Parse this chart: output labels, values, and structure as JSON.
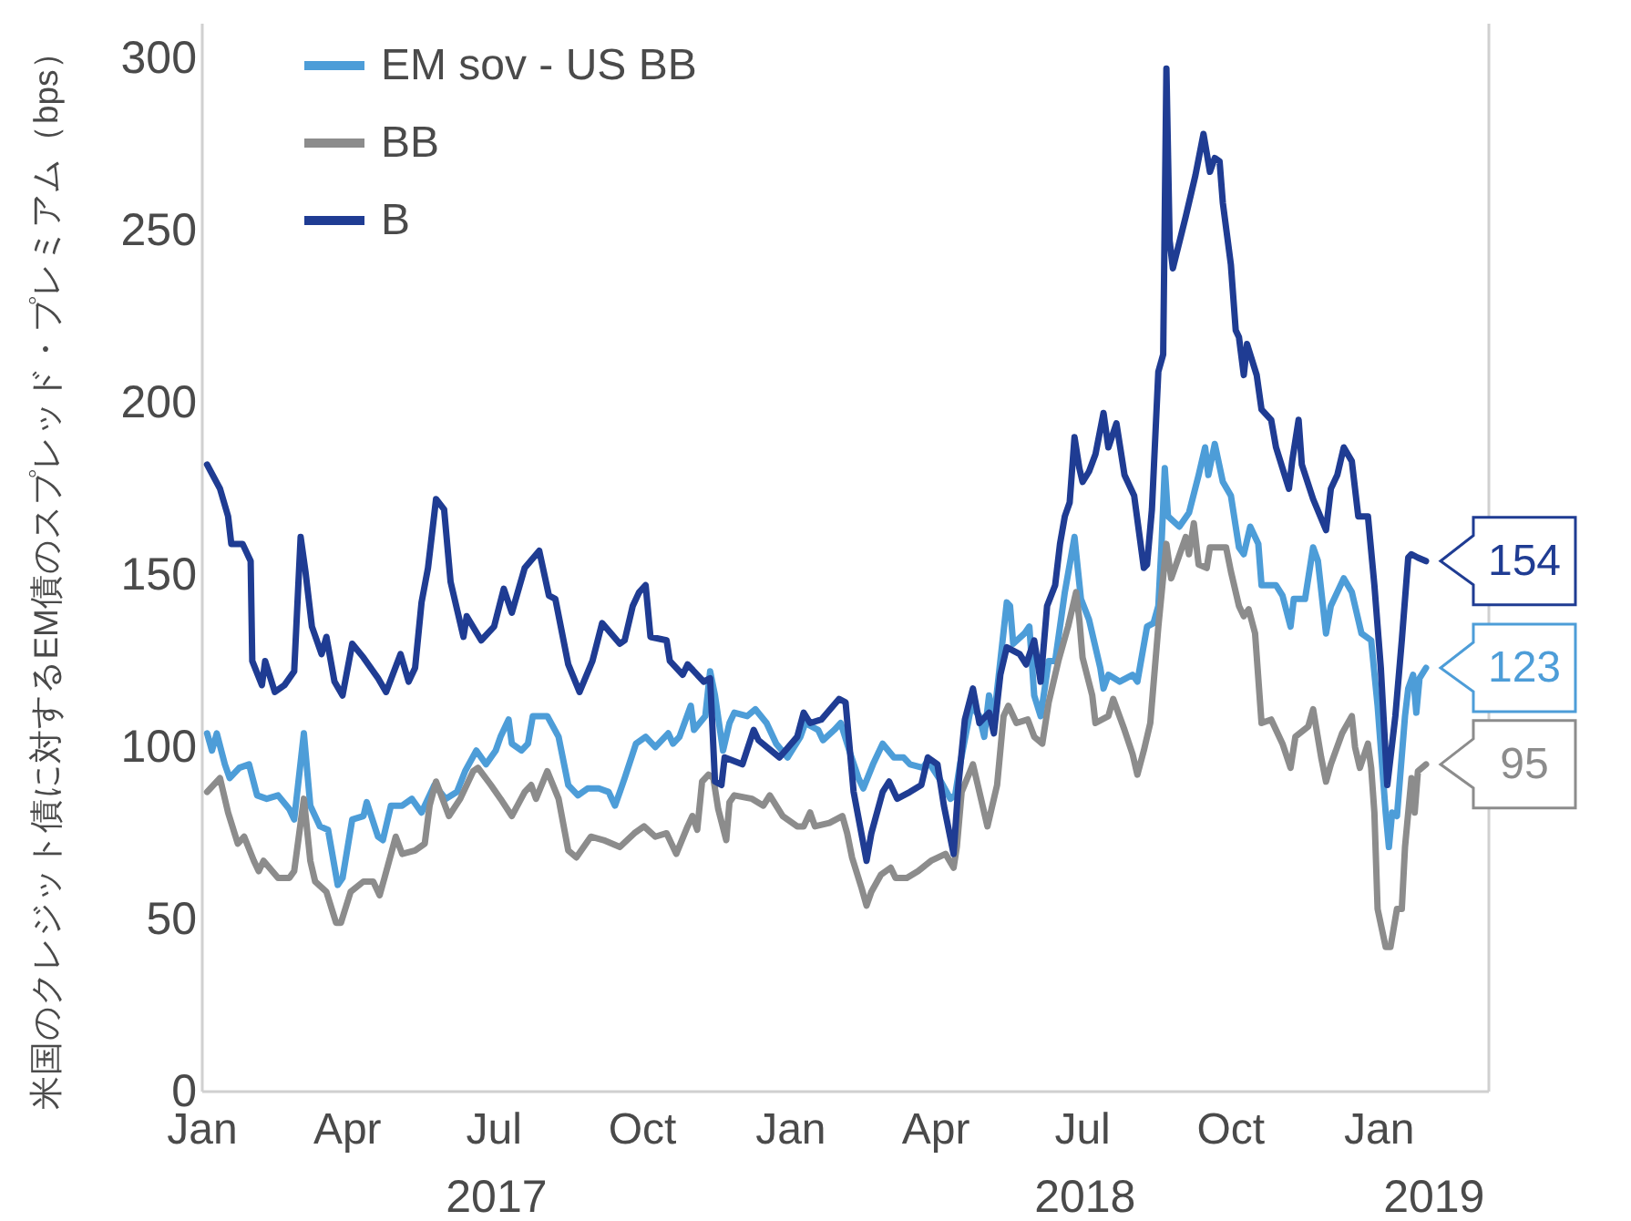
{
  "chart_data": {
    "type": "line",
    "ylabel": "米国のクレジット債に対するEM債のスプレッド・プレミアム（bps）",
    "xlim": [
      "2017-01-01",
      "2019-03-10"
    ],
    "ylim": [
      0,
      310
    ],
    "xticks": [
      {
        "value": "2017-01-01",
        "label": "Jan"
      },
      {
        "value": "2017-04-01",
        "label": "Apr"
      },
      {
        "value": "2017-07-01",
        "label": "Jul"
      },
      {
        "value": "2017-10-01",
        "label": "Oct"
      },
      {
        "value": "2018-01-01",
        "label": "Jan"
      },
      {
        "value": "2018-04-01",
        "label": "Apr"
      },
      {
        "value": "2018-07-01",
        "label": "Jul"
      },
      {
        "value": "2018-10-01",
        "label": "Oct"
      },
      {
        "value": "2019-01-01",
        "label": "Jan"
      }
    ],
    "yticks": [
      0,
      50,
      100,
      150,
      200,
      250,
      300
    ],
    "grid": false,
    "legend": "top left",
    "annotations": [
      "2017",
      "2018",
      "2019"
    ],
    "series": [
      {
        "name": "EM sov - US BB",
        "color": "#4d9dd8",
        "x": [
          "2017-01-04",
          "2017-01-07",
          "2017-01-10",
          "2017-01-15",
          "2017-01-18",
          "2017-01-24",
          "2017-01-30",
          "2017-02-04",
          "2017-02-10",
          "2017-02-17",
          "2017-02-24",
          "2017-02-27",
          "2017-03-05",
          "2017-03-09",
          "2017-03-15",
          "2017-03-20",
          "2017-03-26",
          "2017-03-29",
          "2017-04-04",
          "2017-04-11",
          "2017-04-13",
          "2017-04-20",
          "2017-04-23",
          "2017-04-28",
          "2017-05-05",
          "2017-05-11",
          "2017-05-17",
          "2017-05-25",
          "2017-06-01",
          "2017-06-08",
          "2017-06-13",
          "2017-06-20",
          "2017-06-26",
          "2017-07-02",
          "2017-07-05",
          "2017-07-10",
          "2017-07-12",
          "2017-07-18",
          "2017-07-22",
          "2017-07-25",
          "2017-08-03",
          "2017-08-10",
          "2017-08-16",
          "2017-08-22",
          "2017-08-28",
          "2017-09-04",
          "2017-09-10",
          "2017-09-14",
          "2017-09-17",
          "2017-09-20",
          "2017-09-27",
          "2017-10-03",
          "2017-10-09",
          "2017-10-17",
          "2017-10-20",
          "2017-10-24",
          "2017-10-31",
          "2017-11-02",
          "2017-11-09",
          "2017-11-12",
          "2017-11-15",
          "2017-11-20",
          "2017-11-24",
          "2017-11-27",
          "2017-12-05",
          "2017-12-10",
          "2017-12-17",
          "2017-12-23",
          "2017-12-30",
          "2018-01-07",
          "2018-01-10",
          "2018-01-18",
          "2018-01-21",
          "2018-01-28",
          "2018-02-01",
          "2018-02-07",
          "2018-02-12",
          "2018-02-15",
          "2018-02-21",
          "2018-02-27",
          "2018-03-06",
          "2018-03-12",
          "2018-03-16",
          "2018-03-24",
          "2018-03-27",
          "2018-04-03",
          "2018-04-10",
          "2018-04-13",
          "2018-04-16",
          "2018-04-23",
          "2018-04-28",
          "2018-05-01",
          "2018-05-04",
          "2018-05-07",
          "2018-05-15",
          "2018-05-17",
          "2018-05-19",
          "2018-05-26",
          "2018-05-29",
          "2018-06-01",
          "2018-06-05",
          "2018-06-10",
          "2018-06-14",
          "2018-06-20",
          "2018-06-26",
          "2018-06-30",
          "2018-07-05",
          "2018-07-12",
          "2018-07-14",
          "2018-07-17",
          "2018-07-24",
          "2018-08-01",
          "2018-08-04",
          "2018-08-10",
          "2018-08-14",
          "2018-08-17",
          "2018-08-19",
          "2018-08-21",
          "2018-08-23",
          "2018-08-30",
          "2018-09-05",
          "2018-09-11",
          "2018-09-15",
          "2018-09-17",
          "2018-09-21",
          "2018-09-26",
          "2018-10-01",
          "2018-10-06",
          "2018-10-09",
          "2018-10-13",
          "2018-10-18",
          "2018-10-20",
          "2018-10-29",
          "2018-11-02",
          "2018-11-07",
          "2018-11-09",
          "2018-11-16",
          "2018-11-21",
          "2018-11-24",
          "2018-11-29",
          "2018-12-02",
          "2018-12-10",
          "2018-12-15",
          "2018-12-21",
          "2018-12-27",
          "2018-12-31",
          "2019-01-05",
          "2019-01-07",
          "2019-01-09",
          "2019-01-12",
          "2019-01-17",
          "2019-01-19",
          "2019-01-22",
          "2019-01-24",
          "2019-01-26",
          "2019-01-30"
        ],
        "values": [
          104,
          99,
          104,
          95,
          91,
          94,
          95,
          86,
          85,
          86,
          82,
          79,
          104,
          83,
          77,
          76,
          60,
          62,
          79,
          80,
          84,
          74,
          73,
          83,
          83,
          85,
          81,
          89,
          85,
          87,
          93,
          99,
          95,
          99,
          103,
          108,
          101,
          99,
          101,
          109,
          109,
          103,
          89,
          86,
          88,
          88,
          87,
          83,
          87,
          91,
          101,
          103,
          100,
          104,
          101,
          103,
          112,
          105,
          109,
          122,
          115,
          99,
          107,
          110,
          109,
          111,
          107,
          101,
          97,
          103,
          107,
          105,
          102,
          105,
          107,
          98,
          91,
          88,
          95,
          101,
          97,
          97,
          95,
          94,
          96,
          91,
          85,
          86,
          95,
          112,
          109,
          103,
          115,
          108,
          142,
          141,
          130,
          133,
          135,
          115,
          109,
          125,
          125,
          145,
          161,
          143,
          137,
          123,
          117,
          121,
          119,
          121,
          119,
          135,
          136,
          141,
          159,
          181,
          167,
          164,
          168,
          179,
          187,
          179,
          188,
          177,
          173,
          158,
          156,
          164,
          159,
          147,
          147,
          144,
          135,
          143,
          143,
          158,
          154,
          133,
          141,
          149,
          145,
          133,
          131,
          112,
          81,
          71,
          81,
          80,
          109,
          117,
          121,
          110,
          120,
          123
        ],
        "value_labels": [
          null,
          null,
          null,
          null,
          null,
          null,
          null,
          null,
          null,
          null,
          null,
          null,
          null,
          null,
          null,
          null,
          null,
          null,
          null,
          null,
          null,
          null,
          null,
          null,
          null,
          null,
          null,
          null,
          null,
          null,
          null,
          null,
          null,
          null,
          null,
          null,
          null,
          null,
          null,
          null,
          null,
          null,
          null,
          null,
          null,
          null,
          null,
          null,
          null,
          null,
          null,
          null,
          null,
          null,
          null,
          null,
          null,
          null,
          null,
          null,
          null,
          null,
          null,
          null,
          null,
          null,
          null,
          null,
          null,
          null,
          null,
          null,
          null,
          null,
          null,
          null,
          null,
          null,
          null,
          null,
          null,
          null,
          null,
          null,
          null,
          null,
          null,
          null,
          null,
          null,
          null,
          null,
          null,
          null,
          null,
          null,
          null,
          null,
          null,
          null,
          null,
          null,
          null,
          null,
          null,
          null,
          null,
          null,
          null,
          null,
          null,
          null,
          null,
          null,
          null,
          null,
          null,
          null,
          null,
          null,
          null,
          null,
          null,
          null,
          null,
          null,
          null,
          null,
          null,
          null,
          null,
          null,
          null,
          null,
          null,
          null,
          null,
          null,
          null,
          null,
          null,
          null,
          null,
          null,
          null,
          null,
          null,
          null,
          null,
          null,
          null,
          null,
          null,
          null,
          null,
          "123"
        ]
      },
      {
        "name": "BB",
        "color": "#8c8c8c",
        "x": [
          "2017-01-04",
          "2017-01-12",
          "2017-01-17",
          "2017-01-23",
          "2017-01-27",
          "2017-02-02",
          "2017-02-05",
          "2017-02-08",
          "2017-02-17",
          "2017-02-24",
          "2017-02-27",
          "2017-03-05",
          "2017-03-09",
          "2017-03-12",
          "2017-03-19",
          "2017-03-25",
          "2017-03-28",
          "2017-04-03",
          "2017-04-11",
          "2017-04-17",
          "2017-04-21",
          "2017-04-24",
          "2017-05-01",
          "2017-05-05",
          "2017-05-13",
          "2017-05-19",
          "2017-05-22",
          "2017-05-26",
          "2017-06-03",
          "2017-06-10",
          "2017-06-18",
          "2017-06-21",
          "2017-06-29",
          "2017-07-05",
          "2017-07-12",
          "2017-07-20",
          "2017-07-24",
          "2017-07-27",
          "2017-08-03",
          "2017-08-10",
          "2017-08-16",
          "2017-08-21",
          "2017-08-30",
          "2017-09-07",
          "2017-09-17",
          "2017-09-26",
          "2017-10-02",
          "2017-10-09",
          "2017-10-16",
          "2017-10-22",
          "2017-10-29",
          "2017-11-01",
          "2017-11-04",
          "2017-11-07",
          "2017-11-11",
          "2017-11-14",
          "2017-11-17",
          "2017-11-22",
          "2017-11-24",
          "2017-11-27",
          "2017-12-08",
          "2017-12-15",
          "2017-12-19",
          "2017-12-27",
          "2018-01-05",
          "2018-01-09",
          "2018-01-13",
          "2018-01-16",
          "2018-01-25",
          "2018-02-02",
          "2018-02-05",
          "2018-02-08",
          "2018-02-14",
          "2018-02-17",
          "2018-02-20",
          "2018-02-26",
          "2018-03-04",
          "2018-03-07",
          "2018-03-14",
          "2018-03-21",
          "2018-03-29",
          "2018-04-07",
          "2018-04-12",
          "2018-04-14",
          "2018-04-17",
          "2018-04-24",
          "2018-04-27",
          "2018-05-03",
          "2018-05-09",
          "2018-05-13",
          "2018-05-16",
          "2018-05-21",
          "2018-05-28",
          "2018-06-01",
          "2018-06-06",
          "2018-06-10",
          "2018-06-16",
          "2018-06-22",
          "2018-06-27",
          "2018-06-29",
          "2018-07-01",
          "2018-07-07",
          "2018-07-09",
          "2018-07-17",
          "2018-07-20",
          "2018-07-27",
          "2018-08-01",
          "2018-08-04",
          "2018-08-08",
          "2018-08-12",
          "2018-08-17",
          "2018-08-22",
          "2018-08-25",
          "2018-09-03",
          "2018-09-05",
          "2018-09-08",
          "2018-09-11",
          "2018-09-16",
          "2018-09-18",
          "2018-09-28",
          "2018-10-01",
          "2018-10-06",
          "2018-10-09",
          "2018-10-12",
          "2018-10-16",
          "2018-10-20",
          "2018-10-26",
          "2018-11-02",
          "2018-11-07",
          "2018-11-10",
          "2018-11-18",
          "2018-11-21",
          "2018-11-26",
          "2018-11-29",
          "2018-12-02",
          "2018-12-09",
          "2018-12-15",
          "2018-12-17",
          "2018-12-20",
          "2018-12-25",
          "2018-12-27",
          "2018-12-29",
          "2018-12-31",
          "2019-01-05",
          "2019-01-08",
          "2019-01-12",
          "2019-01-15",
          "2019-01-17",
          "2019-01-21",
          "2019-01-23",
          "2019-01-25",
          "2019-01-30"
        ],
        "values": [
          87,
          91,
          81,
          72,
          74,
          67,
          64,
          67,
          62,
          62,
          64,
          85,
          67,
          61,
          58,
          49,
          49,
          58,
          61,
          61,
          57,
          62,
          74,
          69,
          70,
          72,
          83,
          90,
          80,
          85,
          93,
          94,
          89,
          85,
          80,
          87,
          89,
          85,
          93,
          85,
          70,
          68,
          74,
          73,
          71,
          75,
          77,
          74,
          75,
          69,
          77,
          80,
          76,
          90,
          92,
          91,
          82,
          73,
          84,
          86,
          85,
          83,
          86,
          80,
          77,
          77,
          81,
          77,
          78,
          80,
          75,
          68,
          59,
          54,
          58,
          63,
          65,
          62,
          62,
          64,
          67,
          69,
          65,
          71,
          87,
          95,
          89,
          77,
          89,
          109,
          112,
          107,
          108,
          103,
          101,
          113,
          125,
          135,
          145,
          137,
          126,
          115,
          107,
          109,
          114,
          105,
          98,
          92,
          99,
          107,
          135,
          159,
          149,
          161,
          156,
          165,
          153,
          152,
          158,
          158,
          151,
          141,
          138,
          140,
          133,
          107,
          108,
          101,
          94,
          103,
          106,
          111,
          97,
          90,
          95,
          104,
          109,
          100,
          94,
          101,
          94,
          81,
          53,
          42,
          42,
          53,
          53,
          71,
          91,
          81,
          93,
          95
        ],
        "value_labels": [
          null,
          null,
          null,
          null,
          null,
          null,
          null,
          null,
          null,
          null,
          null,
          null,
          null,
          null,
          null,
          null,
          null,
          null,
          null,
          null,
          null,
          null,
          null,
          null,
          null,
          null,
          null,
          null,
          null,
          null,
          null,
          null,
          null,
          null,
          null,
          null,
          null,
          null,
          null,
          null,
          null,
          null,
          null,
          null,
          null,
          null,
          null,
          null,
          null,
          null,
          null,
          null,
          null,
          null,
          null,
          null,
          null,
          null,
          null,
          null,
          null,
          null,
          null,
          null,
          null,
          null,
          null,
          null,
          null,
          null,
          null,
          null,
          null,
          null,
          null,
          null,
          null,
          null,
          null,
          null,
          null,
          null,
          null,
          null,
          null,
          null,
          null,
          null,
          null,
          null,
          null,
          null,
          null,
          null,
          null,
          null,
          null,
          null,
          null,
          null,
          null,
          null,
          null,
          null,
          null,
          null,
          null,
          null,
          null,
          null,
          null,
          null,
          null,
          null,
          null,
          null,
          null,
          null,
          null,
          null,
          null,
          null,
          null,
          null,
          null,
          null,
          null,
          null,
          null,
          null,
          null,
          null,
          null,
          null,
          null,
          null,
          null,
          null,
          null,
          null,
          null,
          null,
          null,
          null,
          null,
          null,
          null,
          null,
          null,
          null,
          null,
          "95"
        ]
      },
      {
        "name": "B",
        "color": "#1f3c93",
        "x": [
          "2017-01-04",
          "2017-01-12",
          "2017-01-17",
          "2017-01-19",
          "2017-01-26",
          "2017-01-31",
          "2017-02-01",
          "2017-02-07",
          "2017-02-09",
          "2017-02-15",
          "2017-02-21",
          "2017-02-27",
          "2017-03-03",
          "2017-03-06",
          "2017-03-10",
          "2017-03-16",
          "2017-03-19",
          "2017-03-24",
          "2017-03-29",
          "2017-04-04",
          "2017-04-11",
          "2017-04-20",
          "2017-04-25",
          "2017-05-04",
          "2017-05-09",
          "2017-05-13",
          "2017-05-17",
          "2017-05-21",
          "2017-05-26",
          "2017-05-31",
          "2017-06-04",
          "2017-06-12",
          "2017-06-14",
          "2017-06-23",
          "2017-07-01",
          "2017-07-07",
          "2017-07-12",
          "2017-07-20",
          "2017-07-29",
          "2017-08-04",
          "2017-08-08",
          "2017-08-16",
          "2017-08-23",
          "2017-08-31",
          "2017-09-06",
          "2017-09-17",
          "2017-09-20",
          "2017-09-25",
          "2017-09-29",
          "2017-10-03",
          "2017-10-06",
          "2017-10-16",
          "2017-10-18",
          "2017-10-26",
          "2017-10-29",
          "2017-11-08",
          "2017-11-12",
          "2017-11-15",
          "2017-11-19",
          "2017-11-21",
          "2017-12-02",
          "2017-12-09",
          "2017-12-12",
          "2017-12-25",
          "2018-01-05",
          "2018-01-09",
          "2018-01-13",
          "2018-01-20",
          "2018-01-31",
          "2018-02-04",
          "2018-02-09",
          "2018-02-17",
          "2018-02-20",
          "2018-02-27",
          "2018-03-03",
          "2018-03-08",
          "2018-03-16",
          "2018-03-23",
          "2018-03-27",
          "2018-04-02",
          "2018-04-06",
          "2018-04-12",
          "2018-04-15",
          "2018-04-19",
          "2018-04-24",
          "2018-04-28",
          "2018-05-04",
          "2018-05-07",
          "2018-05-11",
          "2018-05-15",
          "2018-05-23",
          "2018-05-27",
          "2018-06-01",
          "2018-06-05",
          "2018-06-09",
          "2018-06-14",
          "2018-06-17",
          "2018-06-20",
          "2018-06-23",
          "2018-06-26",
          "2018-06-29",
          "2018-07-01",
          "2018-07-05",
          "2018-07-09",
          "2018-07-14",
          "2018-07-17",
          "2018-07-22",
          "2018-07-27",
          "2018-08-02",
          "2018-08-08",
          "2018-08-10",
          "2018-08-13",
          "2018-08-17",
          "2018-08-20",
          "2018-08-22",
          "2018-08-24",
          "2018-08-26",
          "2018-09-03",
          "2018-09-09",
          "2018-09-14",
          "2018-09-18",
          "2018-09-21",
          "2018-09-24",
          "2018-09-26",
          "2018-10-01",
          "2018-10-04",
          "2018-10-06",
          "2018-10-09",
          "2018-10-11",
          "2018-10-17",
          "2018-10-20",
          "2018-10-26",
          "2018-10-29",
          "2018-11-02",
          "2018-11-06",
          "2018-11-08",
          "2018-11-12",
          "2018-11-14",
          "2018-11-21",
          "2018-11-29",
          "2018-12-02",
          "2018-12-06",
          "2018-12-10",
          "2018-12-15",
          "2018-12-19",
          "2018-12-25",
          "2018-12-29",
          "2019-01-02",
          "2019-01-06",
          "2019-01-11",
          "2019-01-15",
          "2019-01-19",
          "2019-01-21",
          "2019-01-25",
          "2019-01-30"
        ],
        "values": [
          182,
          175,
          167,
          159,
          159,
          154,
          125,
          118,
          125,
          116,
          118,
          122,
          161,
          151,
          135,
          127,
          132,
          119,
          115,
          130,
          126,
          120,
          116,
          127,
          119,
          123,
          142,
          152,
          172,
          169,
          148,
          132,
          138,
          131,
          135,
          146,
          139,
          152,
          157,
          144,
          143,
          124,
          116,
          125,
          136,
          130,
          131,
          141,
          145,
          147,
          132,
          131,
          125,
          121,
          124,
          119,
          120,
          90,
          89,
          97,
          95,
          105,
          102,
          97,
          103,
          110,
          107,
          108,
          114,
          113,
          87,
          67,
          75,
          87,
          90,
          85,
          87,
          89,
          97,
          95,
          83,
          69,
          89,
          108,
          117,
          107,
          110,
          104,
          121,
          129,
          127,
          124,
          131,
          119,
          141,
          147,
          159,
          167,
          171,
          190,
          181,
          177,
          180,
          185,
          197,
          187,
          194,
          179,
          173,
          152,
          153,
          169,
          209,
          214,
          297,
          247,
          239,
          254,
          266,
          278,
          267,
          271,
          270,
          258,
          240,
          221,
          219,
          208,
          217,
          208,
          198,
          195,
          187,
          181,
          175,
          183,
          195,
          182,
          172,
          163,
          175,
          179,
          187,
          183,
          167,
          167,
          147,
          123,
          89,
          109,
          131,
          155,
          156,
          155,
          154
        ],
        "value_labels": [
          null,
          null,
          null,
          null,
          null,
          null,
          null,
          null,
          null,
          null,
          null,
          null,
          null,
          null,
          null,
          null,
          null,
          null,
          null,
          null,
          null,
          null,
          null,
          null,
          null,
          null,
          null,
          null,
          null,
          null,
          null,
          null,
          null,
          null,
          null,
          null,
          null,
          null,
          null,
          null,
          null,
          null,
          null,
          null,
          null,
          null,
          null,
          null,
          null,
          null,
          null,
          null,
          null,
          null,
          null,
          null,
          null,
          null,
          null,
          null,
          null,
          null,
          null,
          null,
          null,
          null,
          null,
          null,
          null,
          null,
          null,
          null,
          null,
          null,
          null,
          null,
          null,
          null,
          null,
          null,
          null,
          null,
          null,
          null,
          null,
          null,
          null,
          null,
          null,
          null,
          null,
          null,
          null,
          null,
          null,
          null,
          null,
          null,
          null,
          null,
          null,
          null,
          null,
          null,
          null,
          null,
          null,
          null,
          null,
          null,
          null,
          null,
          null,
          null,
          null,
          null,
          null,
          null,
          null,
          null,
          null,
          null,
          null,
          null,
          null,
          null,
          null,
          null,
          null,
          null,
          null,
          null,
          null,
          null,
          null,
          null,
          null,
          null,
          null,
          null,
          null,
          null,
          null,
          null,
          null,
          null,
          null,
          null,
          null,
          null,
          null,
          null,
          null,
          null,
          "154"
        ]
      }
    ]
  }
}
